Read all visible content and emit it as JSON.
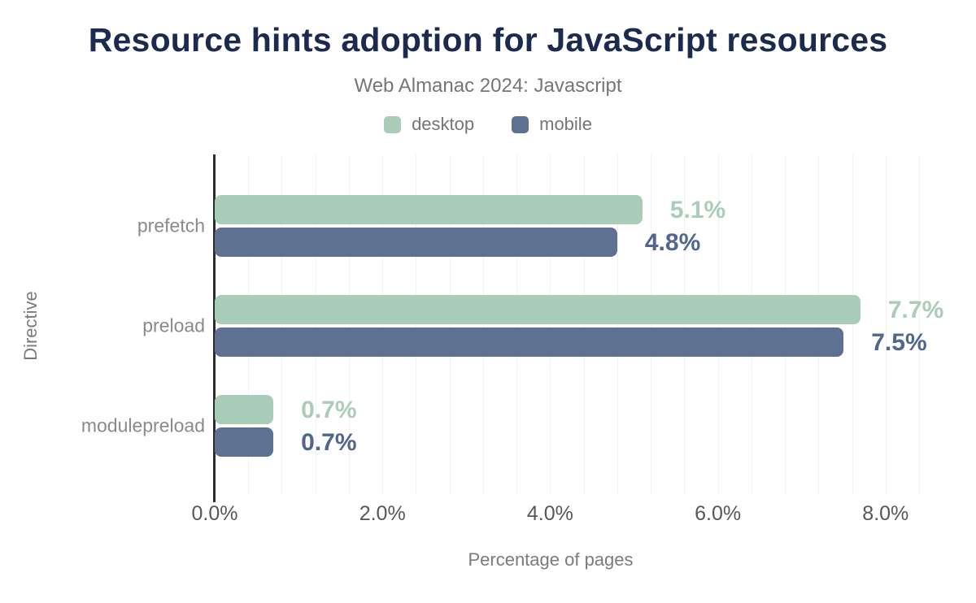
{
  "chart_data": {
    "type": "bar",
    "orientation": "horizontal",
    "title": "Resource hints adoption for JavaScript resources",
    "subtitle": "Web Almanac 2024: Javascript",
    "xlabel": "Percentage of pages",
    "ylabel": "Directive",
    "categories": [
      "prefetch",
      "preload",
      "modulepreload"
    ],
    "series": [
      {
        "name": "desktop",
        "color": "#a9cdb9",
        "label_color": "#a9cdb9",
        "values": [
          5.1,
          7.7,
          0.7
        ],
        "labels": [
          "5.1%",
          "7.7%",
          "0.7%"
        ]
      },
      {
        "name": "mobile",
        "color": "#5e7190",
        "label_color": "#50668e",
        "values": [
          4.8,
          7.5,
          0.7
        ],
        "labels": [
          "4.8%",
          "7.5%",
          "0.7%"
        ]
      }
    ],
    "x_ticks": [
      {
        "value": 0,
        "label": "0.0%"
      },
      {
        "value": 2,
        "label": "2.0%"
      },
      {
        "value": 4,
        "label": "4.0%"
      },
      {
        "value": 6,
        "label": "6.0%"
      },
      {
        "value": 8,
        "label": "8.0%"
      }
    ],
    "xlim": [
      0,
      8.7
    ],
    "grid_step": 0.4,
    "grid_max": 8.4,
    "grid_on": true,
    "legend_position": "top"
  },
  "colors": {
    "title": "#1b2a4e",
    "subtitle": "#767676",
    "category_label": "#8a8a8a",
    "tick_label": "#55585a",
    "axis_title": "#7b7b7b",
    "gridline": "#f2f2f2",
    "axis_line": "#2d2d2d",
    "background": "#ffffff"
  }
}
